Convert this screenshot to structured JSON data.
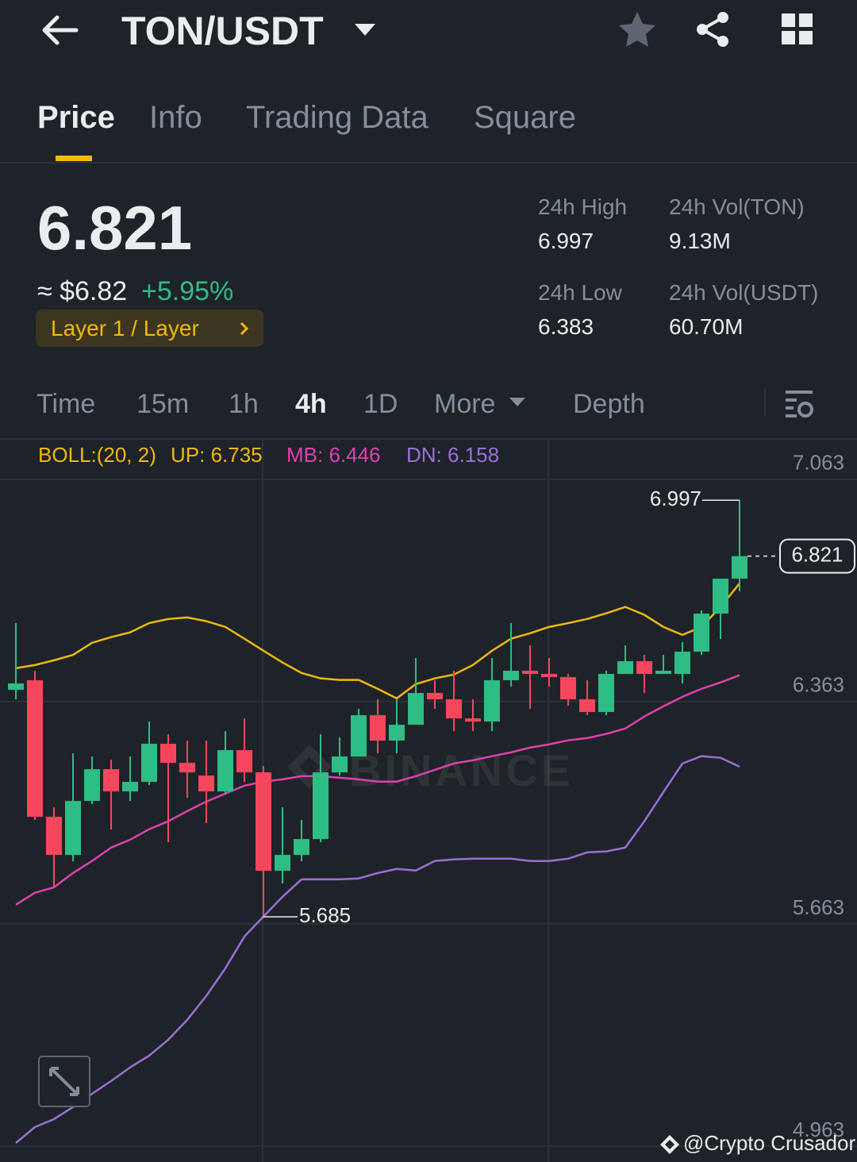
{
  "header": {
    "pair": "TON/USDT"
  },
  "tabs": [
    "Price",
    "Info",
    "Trading Data",
    "Square"
  ],
  "price": {
    "last": "6.821",
    "approx": "≈ $6.82",
    "change": "+5.95%",
    "tag": "Layer 1 / Layer"
  },
  "stats": [
    {
      "label": "24h High",
      "value": "6.997"
    },
    {
      "label": "24h Vol(TON)",
      "value": "9.13M"
    },
    {
      "label": "24h Low",
      "value": "6.383"
    },
    {
      "label": "24h Vol(USDT)",
      "value": "60.70M"
    }
  ],
  "intervals": [
    "Time",
    "15m",
    "1h",
    "4h",
    "1D",
    "More",
    "Depth"
  ],
  "credit": "@Crypto Crusador",
  "chart_data": {
    "type": "candlestick",
    "candles": {
      "open": [
        6.4,
        6.43,
        6.0,
        5.88,
        6.05,
        6.15,
        6.08,
        6.11,
        6.23,
        6.17,
        6.13,
        6.08,
        6.21,
        6.14,
        5.83,
        5.88,
        5.93,
        6.14,
        6.19,
        6.32,
        6.24,
        6.29,
        6.39,
        6.37,
        6.31,
        6.3,
        6.43,
        6.46,
        6.45,
        6.44,
        6.37,
        6.33,
        6.45,
        6.49,
        6.45,
        6.45,
        6.52,
        6.64,
        6.75
      ],
      "high": [
        6.61,
        6.46,
        6.03,
        6.2,
        6.19,
        6.18,
        6.19,
        6.3,
        6.26,
        6.24,
        6.24,
        6.27,
        6.31,
        6.16,
        6.03,
        5.99,
        6.26,
        6.25,
        6.34,
        6.37,
        6.37,
        6.5,
        6.43,
        6.46,
        6.37,
        6.5,
        6.61,
        6.54,
        6.5,
        6.45,
        6.43,
        6.46,
        6.54,
        6.51,
        6.51,
        6.55,
        6.65,
        6.75,
        6.997
      ],
      "low": [
        6.37,
        5.99,
        5.78,
        5.86,
        6.04,
        5.96,
        6.05,
        6.1,
        5.92,
        6.06,
        5.98,
        6.07,
        6.11,
        5.685,
        5.79,
        5.86,
        5.92,
        6.13,
        6.19,
        6.2,
        6.2,
        6.29,
        6.34,
        6.27,
        6.27,
        6.27,
        6.41,
        6.34,
        6.41,
        6.35,
        6.32,
        6.32,
        6.45,
        6.39,
        6.45,
        6.42,
        6.51,
        6.56,
        6.71
      ],
      "close": [
        6.42,
        6.0,
        5.88,
        6.05,
        6.15,
        6.08,
        6.11,
        6.23,
        6.17,
        6.14,
        6.08,
        6.21,
        6.14,
        5.83,
        5.88,
        5.93,
        6.14,
        6.19,
        6.32,
        6.24,
        6.29,
        6.39,
        6.37,
        6.31,
        6.3,
        6.43,
        6.46,
        6.45,
        6.44,
        6.37,
        6.33,
        6.45,
        6.49,
        6.45,
        6.46,
        6.52,
        6.64,
        6.75,
        6.821
      ]
    },
    "up_color": "#2ebd85",
    "down_color": "#f6465d",
    "indicator": "BOLL:(20, 2)",
    "indicator_color": "#f0b90b",
    "series": [
      {
        "name": "UP: 6.735",
        "color": "#f0b90b",
        "values": [
          6.468,
          6.478,
          6.493,
          6.51,
          6.548,
          6.566,
          6.581,
          6.61,
          6.623,
          6.628,
          6.616,
          6.598,
          6.561,
          6.523,
          6.486,
          6.453,
          6.436,
          6.431,
          6.431,
          6.403,
          6.373,
          6.418,
          6.436,
          6.448,
          6.478,
          6.523,
          6.561,
          6.578,
          6.598,
          6.61,
          6.623,
          6.641,
          6.661,
          6.636,
          6.598,
          6.573,
          6.598,
          6.661,
          6.735
        ]
      },
      {
        "name": "MB: 6.446",
        "color": "#e040b0",
        "values": [
          5.723,
          5.761,
          5.778,
          5.823,
          5.861,
          5.903,
          5.928,
          5.961,
          5.986,
          6.018,
          6.048,
          6.073,
          6.098,
          6.111,
          6.118,
          6.128,
          6.128,
          6.123,
          6.118,
          6.111,
          6.111,
          6.128,
          6.148,
          6.168,
          6.178,
          6.191,
          6.203,
          6.218,
          6.228,
          6.241,
          6.248,
          6.261,
          6.278,
          6.316,
          6.348,
          6.378,
          6.403,
          6.423,
          6.446
        ]
      },
      {
        "name": "DN: 6.158",
        "color": "#9b6fd6",
        "values": [
          4.973,
          5.023,
          5.048,
          5.086,
          5.128,
          5.168,
          5.211,
          5.248,
          5.298,
          5.361,
          5.436,
          5.523,
          5.623,
          5.686,
          5.748,
          5.803,
          5.803,
          5.803,
          5.806,
          5.823,
          5.836,
          5.831,
          5.861,
          5.866,
          5.868,
          5.868,
          5.868,
          5.861,
          5.861,
          5.868,
          5.888,
          5.891,
          5.903,
          5.986,
          6.078,
          6.168,
          6.191,
          6.186,
          6.158
        ]
      }
    ],
    "ylim": [
      4.913,
      7.19
    ],
    "yticks": [
      7.063,
      6.363,
      5.663,
      4.963
    ],
    "grid": true,
    "high_marker": 6.997,
    "low_marker": 5.685,
    "last_price": 6.821,
    "watermark": "BINANCE"
  }
}
